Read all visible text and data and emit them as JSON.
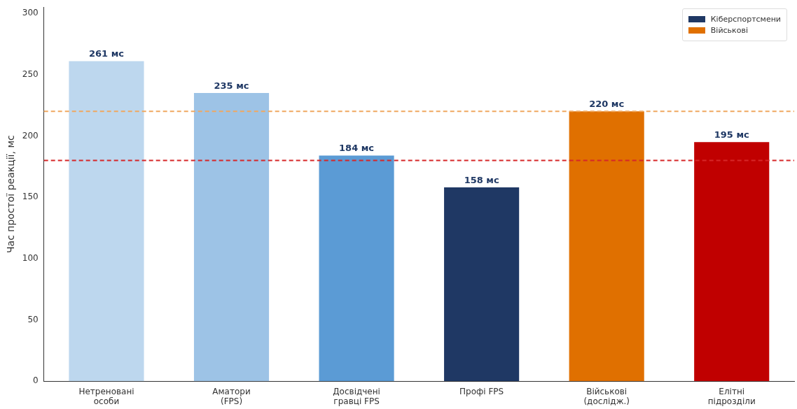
{
  "chart_data": {
    "type": "bar",
    "ylabel": "Час простої реакції, мс",
    "categories": [
      "Нетреновані\nособи",
      "Аматори\n(FPS)",
      "Досвідчені\nгравці FPS",
      "Профі FPS",
      "Військові\n(дослідж.)",
      "Елітні\nпідрозділи"
    ],
    "stacked": true,
    "series": [
      {
        "name": "Кіберспортсмени",
        "color": "#1f3864",
        "colors": [
          "#bdd7ee",
          "#9dc3e6",
          "#5b9bd5",
          "#1f3864",
          null,
          null
        ],
        "values": [
          261,
          235,
          184,
          158,
          null,
          null
        ],
        "value_labels": [
          "261 мс",
          "235 мс",
          "184 мс",
          "158 мс",
          null,
          null
        ]
      },
      {
        "name": "Військові",
        "color": "#e07000",
        "colors": [
          null,
          null,
          null,
          null,
          "#e07000",
          "#c00000"
        ],
        "values": [
          null,
          null,
          null,
          null,
          220,
          195
        ],
        "value_labels": [
          null,
          null,
          null,
          null,
          "220 мс",
          "195 мс"
        ]
      }
    ],
    "ref_lines": [
      {
        "axis": "y",
        "value": 220,
        "color": "#f0a860",
        "line_style": "dashed"
      },
      {
        "axis": "y",
        "value": 180,
        "color": "#d62728",
        "line_style": "dashed"
      }
    ],
    "ylim": [
      0,
      305
    ],
    "yticks": [
      0,
      50,
      100,
      150,
      200,
      250,
      300
    ],
    "grid": false,
    "legend": "top right"
  }
}
